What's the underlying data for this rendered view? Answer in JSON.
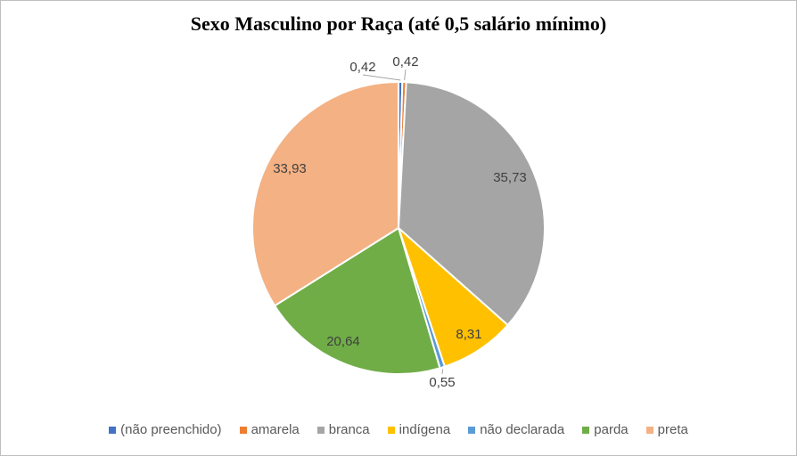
{
  "chart_data": {
    "type": "pie",
    "title": "Sexo Masculino por Raça (até 0,5 salário mínimo)",
    "legend_position": "bottom",
    "slices": [
      {
        "name": "(não preenchido)",
        "value": 0.42,
        "label": "0,42",
        "color": "#4472c4"
      },
      {
        "name": "amarela",
        "value": 0.42,
        "label": "0,42",
        "color": "#ed7d31"
      },
      {
        "name": "branca",
        "value": 35.73,
        "label": "35,73",
        "color": "#a5a5a5"
      },
      {
        "name": "indígena",
        "value": 8.31,
        "label": "8,31",
        "color": "#ffc000"
      },
      {
        "name": "não declarada",
        "value": 0.55,
        "label": "0,55",
        "color": "#5b9bd5"
      },
      {
        "name": "parda",
        "value": 20.64,
        "label": "20,64",
        "color": "#70ad47"
      },
      {
        "name": "preta",
        "value": 33.93,
        "label": "33,93",
        "color": "#f4b183"
      }
    ]
  }
}
